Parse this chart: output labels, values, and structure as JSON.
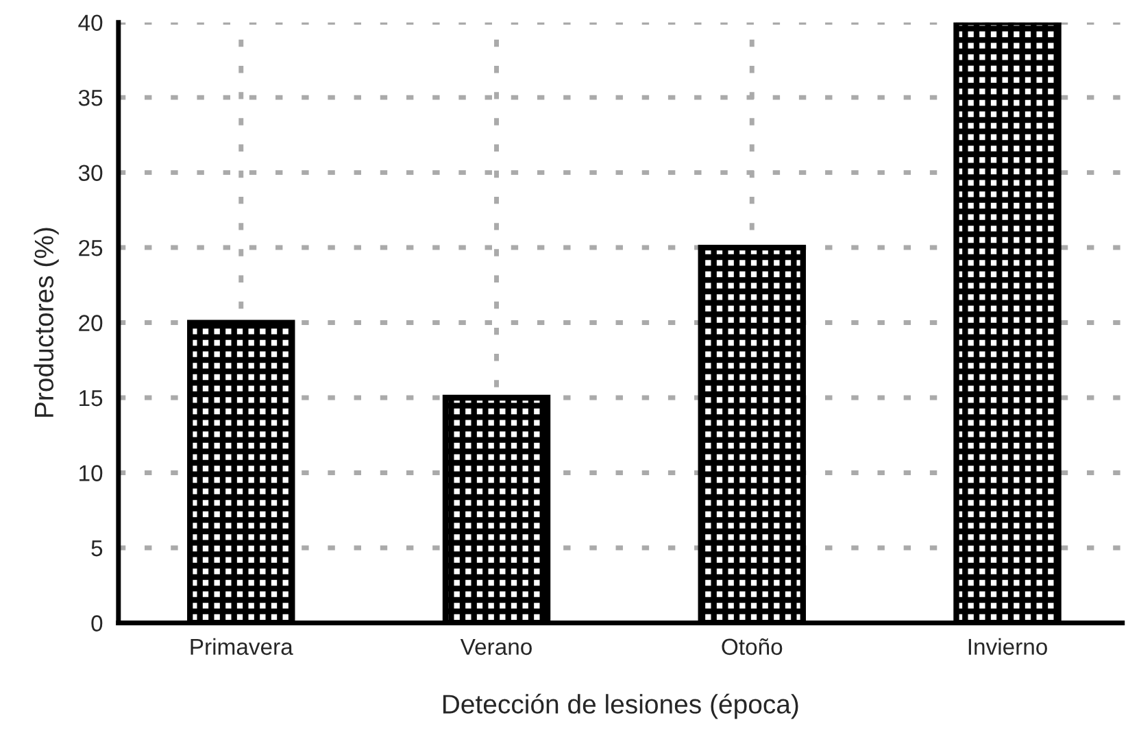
{
  "chart_data": {
    "type": "bar",
    "xlabel": "Detección de lesiones (época)",
    "ylabel": "Productores (%)",
    "categories": [
      "Primavera",
      "Verano",
      "Otoño",
      "Invierno"
    ],
    "values": [
      20,
      15,
      25,
      40
    ],
    "ylim": [
      0,
      40
    ],
    "yticks": [
      0,
      5,
      10,
      15,
      20,
      25,
      30,
      35,
      40
    ],
    "grid": true
  }
}
